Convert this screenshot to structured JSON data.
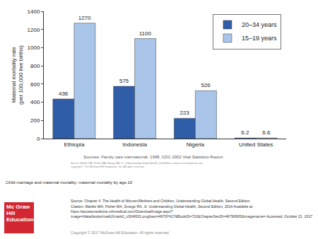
{
  "chart_data": {
    "type": "bar",
    "y_label": "Maternal mortality rate\n(per 100,000 live births)",
    "categories": [
      "Ethiopia",
      "Indonesia",
      "Nigeria",
      "United States"
    ],
    "series": [
      {
        "name": "20–34 years",
        "color": "#2f5da7",
        "values": [
          436,
          575,
          223,
          6.2
        ]
      },
      {
        "name": "15–19 years",
        "color": "#a9c6ea",
        "values": [
          1270,
          1100,
          526,
          6.6
        ]
      }
    ],
    "ylim": [
      0,
      1400
    ],
    "yticks": [
      0,
      200,
      400,
      600,
      800,
      1000,
      1200,
      1400
    ],
    "grid": false,
    "legend": "upper right",
    "data_labels": true
  },
  "chart_source": "Sources: Family care international, 1998, CDC 2002 Vital Statistics Report",
  "chart_notes": [
    "Source: Markle WH, Fisher MA, Smego RA, Jr.: Understanding Global Health, 2nd Edition: www.accessmedicine.com",
    "Copyright © The McGraw-Hill Companies, Inc. All rights reserved."
  ],
  "caption": "Child marriage and maternal mortality: maternal mortality by age.10",
  "footer": [
    "Source: Chapter 4. The Health of Women/Mothers and Children, Understanding Global Health, Second Edition",
    "Citation: Markle WH, Fisher MA, Smego RA, Jr.  Understanding Global Health, Second Edition; 2014 Available at: https://accessmedicine.mhmedical.com/DownloadImage.aspx?image=/data/books/mark2/mark2_c004f001.png&sec=46797417&BookID=710&ChapterSecID=46796905&imagename= Accessed: October 21, 2017",
    "Copyright © 2017 McGraw-Hill Education. All rights reserved"
  ],
  "logo": "Mc Graw Hill Education"
}
